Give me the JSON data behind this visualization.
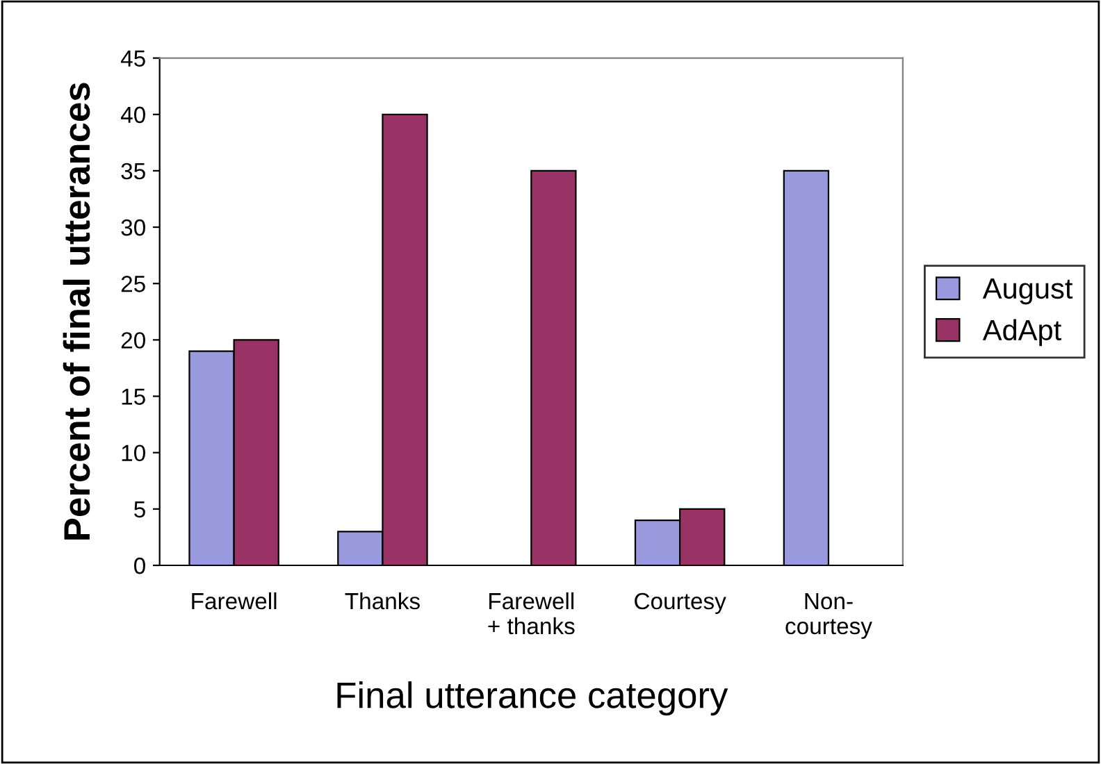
{
  "chart_data": {
    "type": "bar",
    "xlabel": "Final utterance category",
    "ylabel": "Percent of final utterances",
    "categories": [
      "Farewell",
      "Thanks",
      "Farewell\n+ thanks",
      "Courtesy",
      "Non-\ncourtesy"
    ],
    "series": [
      {
        "name": "August",
        "color": "#9999dd",
        "values": [
          19,
          3,
          null,
          4,
          35
        ]
      },
      {
        "name": "AdApt",
        "color": "#993366",
        "values": [
          20,
          40,
          35,
          5,
          null
        ]
      }
    ],
    "ylim": [
      0,
      45
    ],
    "yticks": [
      0,
      5,
      10,
      15,
      20,
      25,
      30,
      35,
      40,
      45
    ],
    "grid": false,
    "legend": "right"
  }
}
